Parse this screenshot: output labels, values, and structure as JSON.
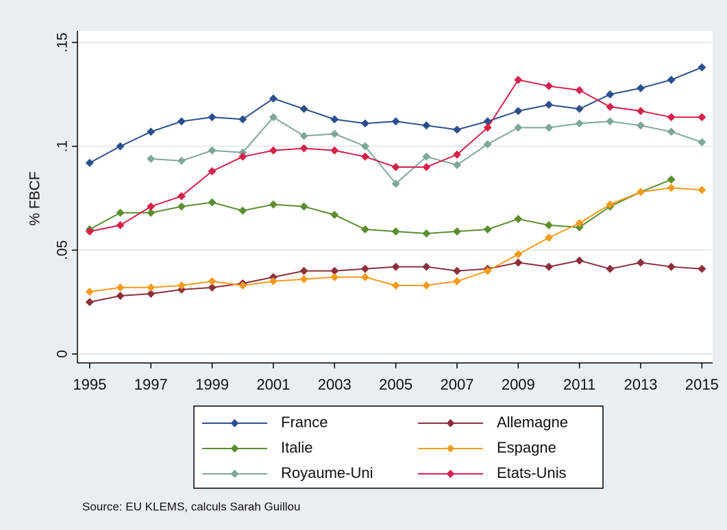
{
  "chart_data": {
    "type": "line",
    "y_label": "% FBCF",
    "source": "Source: EU KLEMS, calculs Sarah Guillou",
    "x": [
      1995,
      1996,
      1997,
      1998,
      1999,
      2000,
      2001,
      2002,
      2003,
      2004,
      2005,
      2006,
      2007,
      2008,
      2009,
      2010,
      2011,
      2012,
      2013,
      2014,
      2015
    ],
    "xlim": [
      1994.6,
      2015.35
    ],
    "xticks": [
      1995,
      1997,
      1999,
      2001,
      2003,
      2005,
      2007,
      2009,
      2011,
      2013,
      2015
    ],
    "ylim": [
      -0.0043,
      0.1556
    ],
    "yticks": [
      0,
      {
        "value": 0.05,
        "label": ".05"
      },
      {
        "value": 0.1,
        "label": ".1"
      },
      {
        "value": 0.15,
        "label": ".15"
      }
    ],
    "grid": true,
    "legend": "bottom",
    "series": [
      {
        "name": "France",
        "color": "#2c4f8e",
        "values": [
          0.092,
          0.1,
          0.107,
          0.112,
          0.114,
          0.113,
          0.123,
          0.118,
          0.113,
          0.111,
          0.112,
          0.11,
          0.108,
          0.112,
          0.117,
          0.12,
          0.118,
          0.125,
          0.128,
          0.132,
          0.138
        ]
      },
      {
        "name": "Allemagne",
        "color": "#8c2f3c",
        "values": [
          0.025,
          0.028,
          0.029,
          0.031,
          0.032,
          0.034,
          0.037,
          0.04,
          0.04,
          0.041,
          0.042,
          0.042,
          0.04,
          0.041,
          0.044,
          0.042,
          0.045,
          0.041,
          0.044,
          0.042,
          0.041
        ]
      },
      {
        "name": "Italie",
        "color": "#5b8e2f",
        "values": [
          0.06,
          0.068,
          0.068,
          0.071,
          0.073,
          0.069,
          0.072,
          0.071,
          0.067,
          0.06,
          0.059,
          0.058,
          0.059,
          0.06,
          0.065,
          0.062,
          0.061,
          0.071,
          0.078,
          0.084,
          null
        ]
      },
      {
        "name": "Espagne",
        "color": "#f39b1c",
        "values": [
          0.03,
          0.032,
          0.032,
          0.033,
          0.035,
          0.033,
          0.035,
          0.036,
          0.037,
          0.037,
          0.033,
          0.033,
          0.035,
          0.04,
          0.048,
          0.056,
          0.063,
          0.072,
          0.078,
          0.08,
          0.079
        ]
      },
      {
        "name": "Royaume-Uni",
        "color": "#7ea79a",
        "values": [
          null,
          null,
          0.094,
          0.093,
          0.098,
          0.097,
          0.114,
          0.105,
          0.106,
          0.1,
          0.082,
          0.095,
          0.091,
          0.101,
          0.109,
          0.109,
          0.111,
          0.112,
          0.11,
          0.107,
          0.102
        ]
      },
      {
        "name": "Etats-Unis",
        "color": "#d6214c",
        "values": [
          0.059,
          0.062,
          0.071,
          0.076,
          0.088,
          0.095,
          0.098,
          0.099,
          0.098,
          0.095,
          0.09,
          0.09,
          0.096,
          0.109,
          0.132,
          0.129,
          0.127,
          0.119,
          0.117,
          0.114,
          0.114
        ]
      }
    ]
  }
}
